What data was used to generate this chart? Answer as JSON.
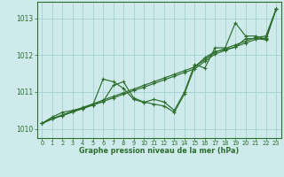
{
  "title": "Graphe pression niveau de la mer (hPa)",
  "bg_color": "#ceeaea",
  "grid_color": "#aad4d4",
  "line_color": "#2d6e2d",
  "xlim": [
    -0.5,
    23.5
  ],
  "ylim": [
    1009.75,
    1013.45
  ],
  "xticks": [
    0,
    1,
    2,
    3,
    4,
    5,
    6,
    7,
    8,
    9,
    10,
    11,
    12,
    13,
    14,
    15,
    16,
    17,
    18,
    19,
    20,
    21,
    22,
    23
  ],
  "yticks": [
    1010,
    1011,
    1012,
    1013
  ],
  "series": [
    {
      "y": [
        1010.15,
        1010.32,
        1010.45,
        1010.5,
        1010.57,
        1010.65,
        1011.35,
        1011.28,
        1011.1,
        1010.8,
        1010.72,
        1010.8,
        1010.73,
        1010.5,
        1011.0,
        1011.75,
        1011.65,
        1012.2,
        1012.2,
        1012.88,
        1012.52,
        1012.52,
        1012.43,
        1013.25
      ]
    },
    {
      "y": [
        1010.15,
        1010.28,
        1010.38,
        1010.48,
        1010.58,
        1010.68,
        1010.78,
        1010.88,
        1010.98,
        1011.08,
        1011.18,
        1011.28,
        1011.38,
        1011.48,
        1011.58,
        1011.68,
        1011.88,
        1012.08,
        1012.18,
        1012.28,
        1012.38,
        1012.48,
        1012.52,
        1013.25
      ]
    },
    {
      "y": [
        1010.15,
        1010.27,
        1010.36,
        1010.46,
        1010.55,
        1010.65,
        1010.74,
        1010.84,
        1010.94,
        1011.04,
        1011.13,
        1011.23,
        1011.33,
        1011.43,
        1011.53,
        1011.63,
        1011.83,
        1012.03,
        1012.13,
        1012.23,
        1012.33,
        1012.43,
        1012.47,
        1013.25
      ]
    },
    {
      "y": [
        1010.15,
        1010.27,
        1010.36,
        1010.46,
        1010.55,
        1010.65,
        1010.74,
        1011.18,
        1011.28,
        1010.84,
        1010.73,
        1010.67,
        1010.62,
        1010.45,
        1010.95,
        1011.68,
        1011.93,
        1012.1,
        1012.15,
        1012.22,
        1012.45,
        1012.45,
        1012.42,
        1013.25
      ]
    }
  ]
}
